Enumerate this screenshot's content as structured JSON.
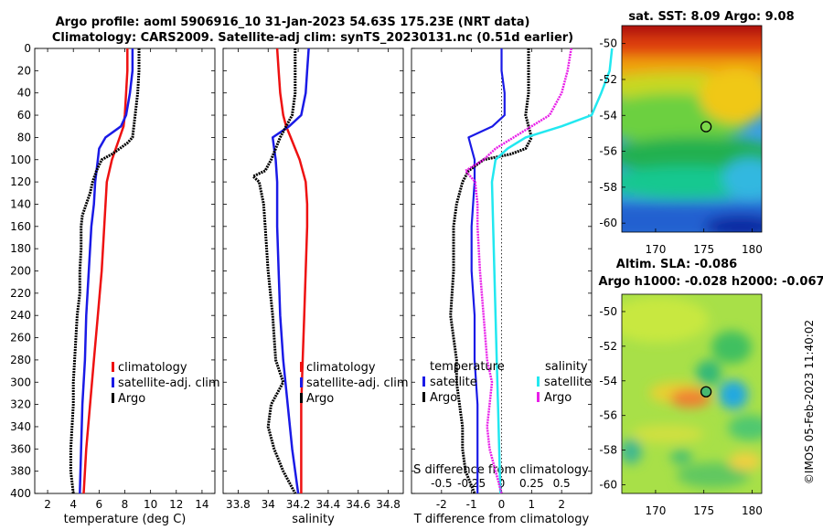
{
  "title_line1": "Argo profile: aoml 5906916_10 31-Jan-2023 54.63S 175.23E (NRT data)",
  "title_line2": "Climatology: CARS2009. Satellite-adj clim: synTS_20230131.nc (0.51d earlier)",
  "watermark": "©IMOS 05-Feb-2023 11:40:02",
  "colors": {
    "climatology": "#ee1111",
    "satellite": "#1a1ae6",
    "argo": "#000000",
    "sal_sat": "#22e8f0",
    "sal_argo": "#e81ee8"
  },
  "depth_ticks": [
    0,
    20,
    40,
    60,
    80,
    100,
    120,
    140,
    160,
    180,
    200,
    220,
    240,
    260,
    280,
    300,
    320,
    340,
    360,
    380,
    400
  ],
  "chart_data": [
    {
      "type": "line",
      "name": "temperature",
      "xlabel": "temperature (deg C)",
      "xlim": [
        1,
        15
      ],
      "ylim": [
        0,
        400
      ],
      "x_ticks": [
        2,
        4,
        6,
        8,
        10,
        12,
        14
      ],
      "legend": [
        "climatology",
        "satellite-adj. clim",
        "Argo"
      ],
      "series": [
        {
          "name": "climatology",
          "depth": [
            0,
            20,
            40,
            60,
            70,
            80,
            100,
            120,
            160,
            200,
            240,
            280,
            320,
            360,
            400
          ],
          "values": [
            8.2,
            8.2,
            8.1,
            8.0,
            7.9,
            7.6,
            7.0,
            6.6,
            6.4,
            6.2,
            5.9,
            5.6,
            5.3,
            5.0,
            4.8
          ]
        },
        {
          "name": "satellite-adj. clim",
          "depth": [
            0,
            20,
            40,
            60,
            70,
            80,
            90,
            100,
            120,
            140,
            160,
            200,
            240,
            280,
            320,
            360,
            400
          ],
          "values": [
            8.6,
            8.6,
            8.4,
            8.1,
            7.7,
            6.5,
            6.0,
            5.9,
            5.7,
            5.6,
            5.4,
            5.2,
            5.0,
            4.9,
            4.7,
            4.6,
            4.5
          ]
        },
        {
          "name": "Argo",
          "depth": [
            0,
            20,
            40,
            60,
            80,
            85,
            90,
            95,
            100,
            110,
            120,
            130,
            140,
            150,
            160,
            180,
            200,
            220,
            240,
            260,
            280,
            300,
            320,
            340,
            360,
            380,
            400
          ],
          "values": [
            9.1,
            9.1,
            9.0,
            8.8,
            8.6,
            8.2,
            7.6,
            7.0,
            6.2,
            5.8,
            5.5,
            5.3,
            5.0,
            4.7,
            4.6,
            4.6,
            4.5,
            4.5,
            4.3,
            4.2,
            4.1,
            4.0,
            4.0,
            3.9,
            3.8,
            3.8,
            4.0
          ]
        }
      ]
    },
    {
      "type": "line",
      "name": "salinity",
      "xlabel": "salinity",
      "xlim": [
        33.7,
        34.9
      ],
      "ylim": [
        0,
        400
      ],
      "x_ticks": [
        33.8,
        34,
        34.2,
        34.4,
        34.6,
        34.8
      ],
      "legend": [
        "climatology",
        "satellite-adj. clim",
        "Argo"
      ],
      "series": [
        {
          "name": "climatology",
          "depth": [
            0,
            20,
            40,
            60,
            70,
            80,
            90,
            100,
            110,
            120,
            140,
            160,
            200,
            240,
            280,
            320,
            360,
            400
          ],
          "values": [
            34.06,
            34.07,
            34.08,
            34.1,
            34.12,
            34.15,
            34.18,
            34.21,
            34.23,
            34.25,
            34.26,
            34.26,
            34.25,
            34.24,
            34.23,
            34.22,
            34.22,
            34.22
          ]
        },
        {
          "name": "satellite-adj. clim",
          "depth": [
            0,
            20,
            40,
            60,
            70,
            80,
            90,
            100,
            120,
            160,
            200,
            240,
            280,
            320,
            360,
            400
          ],
          "values": [
            34.27,
            34.26,
            34.25,
            34.22,
            34.14,
            34.03,
            34.04,
            34.05,
            34.06,
            34.06,
            34.07,
            34.08,
            34.1,
            34.13,
            34.16,
            34.2
          ]
        },
        {
          "name": "Argo",
          "depth": [
            0,
            20,
            40,
            60,
            70,
            80,
            90,
            100,
            110,
            115,
            120,
            140,
            160,
            200,
            240,
            280,
            300,
            320,
            340,
            360,
            380,
            400
          ],
          "values": [
            34.18,
            34.18,
            34.18,
            34.16,
            34.12,
            34.08,
            34.05,
            34.02,
            33.98,
            33.9,
            33.94,
            33.97,
            33.98,
            34.0,
            34.03,
            34.05,
            34.1,
            34.02,
            34.0,
            34.04,
            34.1,
            34.18
          ]
        }
      ]
    },
    {
      "type": "line",
      "name": "differences",
      "xlabel": "T difference from climatology",
      "xlim": [
        -3,
        3
      ],
      "ylim": [
        0,
        400
      ],
      "x_ticks": [
        -2,
        -1,
        0,
        1,
        2
      ],
      "top_label": "S difference from climatology",
      "top_ticks_label": [
        -0.5,
        -0.25,
        0,
        0.25,
        0.5
      ],
      "legend_titles": [
        "temperature",
        "salinity"
      ],
      "legend": [
        "satellite",
        "Argo",
        "satellite",
        "Argo"
      ],
      "series": [
        {
          "name": "T satellite",
          "depth": [
            0,
            20,
            40,
            60,
            70,
            80,
            90,
            100,
            120,
            160,
            200,
            240,
            280,
            320,
            360,
            400
          ],
          "values": [
            0.0,
            0.0,
            0.1,
            0.1,
            -0.3,
            -1.1,
            -1.0,
            -0.9,
            -0.9,
            -1.0,
            -1.0,
            -0.9,
            -0.9,
            -0.8,
            -0.8,
            -0.8
          ]
        },
        {
          "name": "T Argo",
          "depth": [
            0,
            20,
            40,
            60,
            70,
            80,
            90,
            95,
            100,
            110,
            120,
            140,
            160,
            200,
            240,
            260,
            280,
            300,
            320,
            340,
            360,
            380,
            400
          ],
          "values": [
            0.9,
            0.9,
            0.9,
            0.8,
            0.9,
            1.0,
            0.8,
            0.3,
            -0.6,
            -1.1,
            -1.3,
            -1.5,
            -1.6,
            -1.6,
            -1.7,
            -1.6,
            -1.5,
            -1.5,
            -1.4,
            -1.3,
            -1.3,
            -1.2,
            -0.9
          ]
        },
        {
          "name": "S satellite",
          "depth": [
            0,
            20,
            40,
            60,
            70,
            80,
            90,
            100,
            120,
            160,
            200,
            240,
            280,
            320,
            360,
            400
          ],
          "values": [
            0.92,
            0.9,
            0.83,
            0.75,
            0.5,
            0.2,
            0.05,
            -0.05,
            -0.08,
            -0.07,
            -0.06,
            -0.05,
            -0.04,
            -0.03,
            -0.02,
            -0.01
          ]
        },
        {
          "name": "S Argo",
          "depth": [
            0,
            20,
            40,
            60,
            70,
            80,
            90,
            100,
            110,
            120,
            140,
            160,
            200,
            240,
            280,
            300,
            320,
            340,
            360,
            380,
            400
          ],
          "values": [
            0.58,
            0.55,
            0.5,
            0.4,
            0.25,
            0.1,
            -0.05,
            -0.15,
            -0.3,
            -0.22,
            -0.2,
            -0.2,
            -0.18,
            -0.15,
            -0.12,
            -0.08,
            -0.1,
            -0.12,
            -0.1,
            -0.05,
            0.0
          ]
        }
      ]
    },
    {
      "type": "heatmap",
      "name": "sat_sst",
      "title": "sat. SST: 8.09 Argo: 9.08",
      "xlim": [
        166.5,
        181
      ],
      "ylim": [
        -60.5,
        -49
      ],
      "x_ticks": [
        170,
        175,
        180
      ],
      "y_ticks": [
        -50,
        -52,
        -54,
        -56,
        -58,
        -60
      ],
      "float_position": [
        175.23,
        -54.63
      ]
    },
    {
      "type": "heatmap",
      "name": "altim_sla",
      "title_line1": "Altim. SLA: -0.086",
      "title_line2": "Argo h1000: -0.028 h2000: -0.067",
      "xlim": [
        166.5,
        181
      ],
      "ylim": [
        -60.5,
        -49
      ],
      "x_ticks": [
        170,
        175,
        180
      ],
      "y_ticks": [
        -50,
        -52,
        -54,
        -56,
        -58,
        -60
      ],
      "float_position": [
        175.23,
        -54.63
      ]
    }
  ]
}
